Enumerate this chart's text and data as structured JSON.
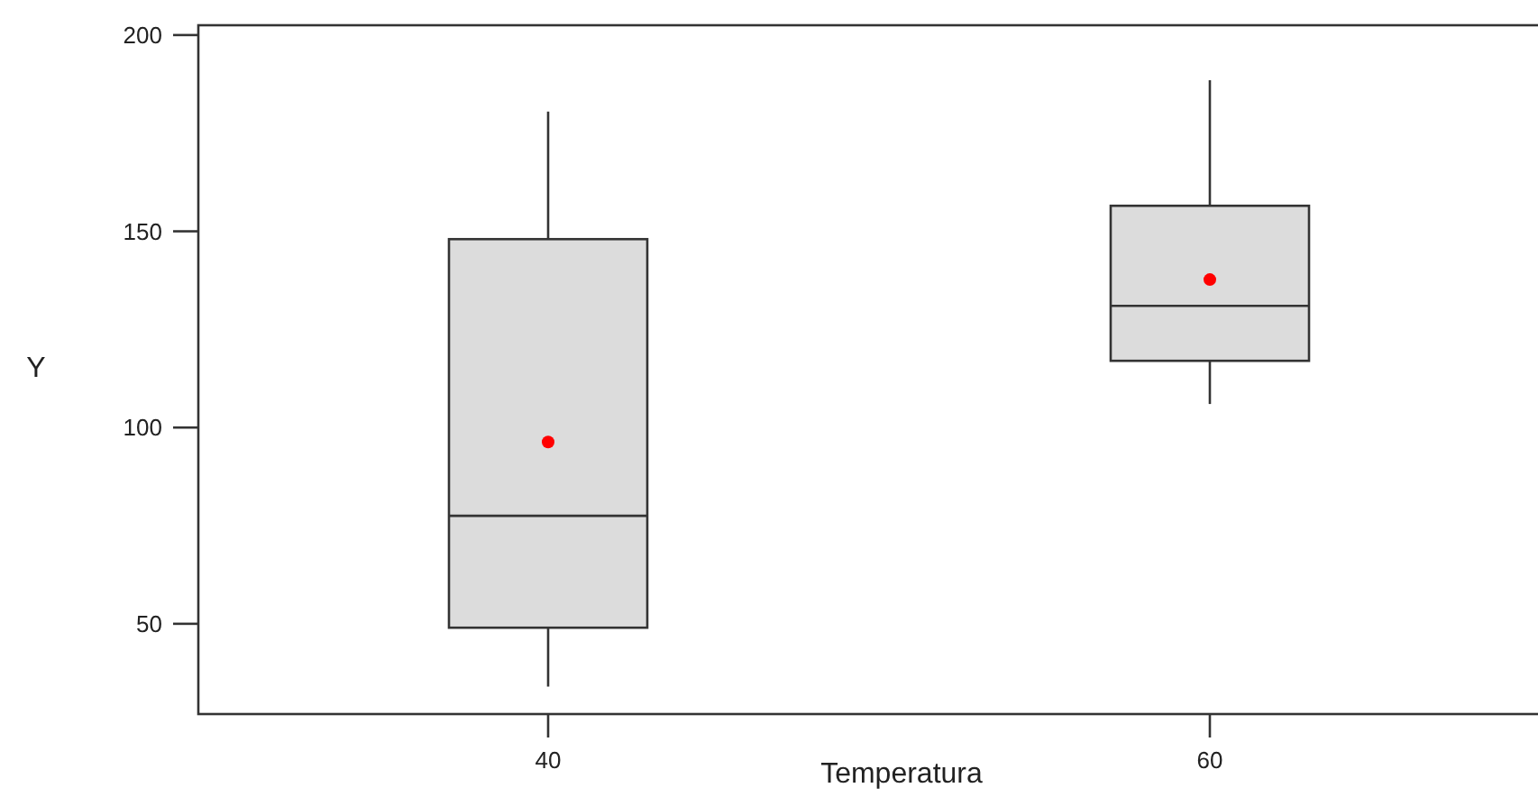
{
  "chart_data": {
    "type": "box",
    "xlabel": "Temperatura",
    "ylabel": "Y",
    "categories": [
      "40",
      "60"
    ],
    "color": "#dcdcdc",
    "boxes": [
      {
        "low": 34,
        "q1": 49,
        "median": 77.5,
        "q3": 148,
        "high": 180.5
      },
      {
        "low": 106,
        "q1": 117,
        "median": 131,
        "q3": 156.5,
        "high": 188.5
      }
    ],
    "series": [
      {
        "type": "scatter",
        "x": [
          "40",
          "60"
        ],
        "values": [
          96.3,
          137.7
        ],
        "color": "#ff0000"
      }
    ],
    "marker": "circle",
    "ylim": [
      27,
      202.5
    ],
    "yticks": [
      50,
      100,
      150,
      200
    ],
    "grid": false
  }
}
